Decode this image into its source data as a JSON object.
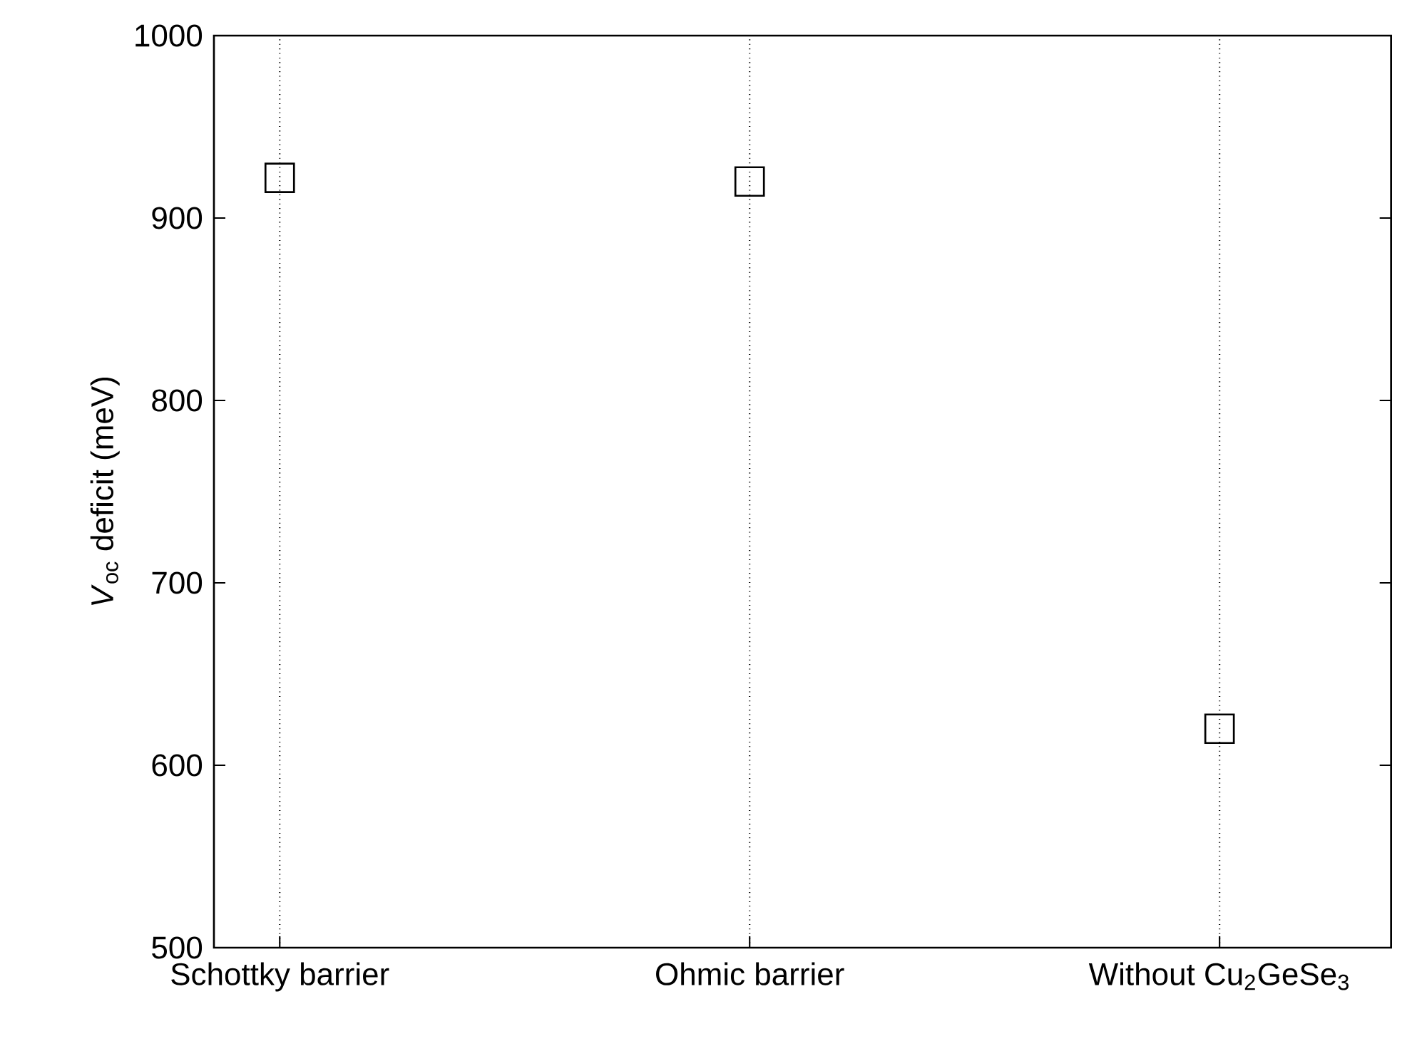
{
  "chart_data": {
    "type": "scatter",
    "ylabel": "*V*$_{oc}$ deficit (meV)",
    "categories": [
      "Schottky barrier",
      "Ohmic barrier",
      "Without Cu$_{2}$GeSe$_{3}$"
    ],
    "series": [
      {
        "color": "#000000",
        "values": [
          922,
          920,
          620
        ]
      }
    ],
    "ylim": [
      500,
      1000
    ],
    "yticks": [
      500,
      600,
      700,
      800,
      900,
      1000
    ],
    "grid": "x",
    "marker": "square"
  }
}
